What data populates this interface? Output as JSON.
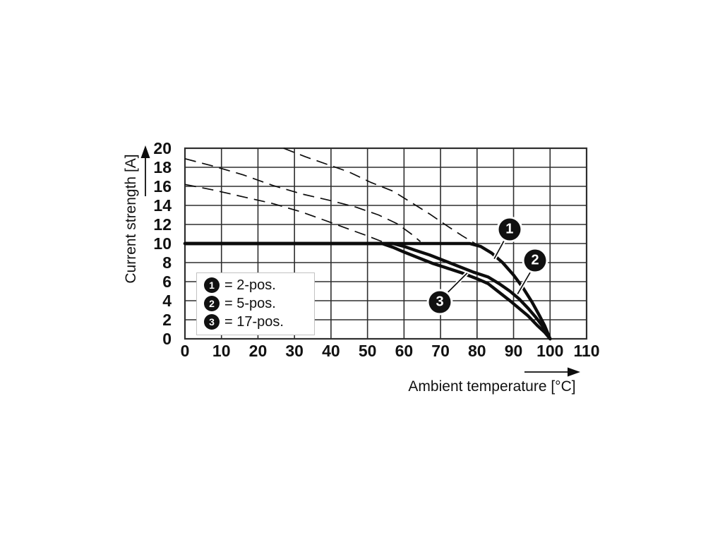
{
  "page": {
    "background": "#ffffff"
  },
  "colors": {
    "curve": "#0d0d0d",
    "grid": "#2e2e2e",
    "text": "#111111",
    "annotation_fill": "#111111",
    "annotation_text": "#ffffff",
    "legend_border": "#c2c2c2"
  },
  "chart_data": {
    "type": "line",
    "title": "",
    "xlabel": "Ambient temperature [°C]",
    "ylabel": "Current strength [A]",
    "xlim": [
      0,
      110
    ],
    "ylim": [
      0,
      20
    ],
    "grid": "on",
    "legend_position": "lower-left-inside",
    "x_ticks": [
      0,
      10,
      20,
      30,
      40,
      50,
      60,
      70,
      80,
      90,
      100,
      110
    ],
    "y_ticks": [
      0,
      2,
      4,
      6,
      8,
      10,
      12,
      14,
      16,
      18,
      20
    ],
    "rated_current_limit": 10,
    "series": [
      {
        "name": "2-pos. rated (solid)",
        "style": "solid",
        "points": [
          [
            0,
            10
          ],
          [
            78,
            10
          ],
          [
            81,
            9.7
          ],
          [
            84,
            9.0
          ],
          [
            87,
            8.0
          ],
          [
            90,
            6.7
          ],
          [
            92.5,
            5.4
          ],
          [
            95,
            3.9
          ],
          [
            97,
            2.5
          ],
          [
            98.5,
            1.4
          ],
          [
            100,
            0
          ]
        ]
      },
      {
        "name": "5-pos. rated (solid)",
        "style": "solid",
        "points": [
          [
            0,
            10
          ],
          [
            57,
            10
          ],
          [
            60,
            9.7
          ],
          [
            63,
            9.3
          ],
          [
            67,
            8.8
          ],
          [
            71,
            8.2
          ],
          [
            75,
            7.6
          ],
          [
            79,
            7.0
          ],
          [
            83,
            6.5
          ],
          [
            86,
            5.8
          ],
          [
            89,
            5.0
          ],
          [
            91.5,
            4.2
          ],
          [
            94,
            3.2
          ],
          [
            96,
            2.3
          ],
          [
            98,
            1.3
          ],
          [
            100,
            0
          ]
        ]
      },
      {
        "name": "17-pos. rated (solid)",
        "style": "solid",
        "points": [
          [
            0,
            10
          ],
          [
            54,
            10
          ],
          [
            57,
            9.6
          ],
          [
            60,
            9.1
          ],
          [
            64,
            8.5
          ],
          [
            68,
            7.9
          ],
          [
            72,
            7.4
          ],
          [
            76,
            6.9
          ],
          [
            80,
            6.3
          ],
          [
            83,
            5.8
          ],
          [
            86,
            4.9
          ],
          [
            89,
            4.0
          ],
          [
            91.5,
            3.2
          ],
          [
            94,
            2.4
          ],
          [
            96.5,
            1.4
          ],
          [
            98.5,
            0.7
          ],
          [
            100,
            0
          ]
        ]
      },
      {
        "name": "2-pos. derating (dashed)",
        "style": "dashed",
        "points": [
          [
            27,
            20
          ],
          [
            33,
            19.1
          ],
          [
            39,
            18.3
          ],
          [
            45,
            17.5
          ],
          [
            51,
            16.4
          ],
          [
            57,
            15.5
          ],
          [
            62,
            14.3
          ],
          [
            67,
            13.1
          ],
          [
            72,
            11.8
          ],
          [
            76,
            10.8
          ],
          [
            79.5,
            10.0
          ]
        ]
      },
      {
        "name": "5-pos. derating (dashed)",
        "style": "dashed",
        "points": [
          [
            0,
            18.9
          ],
          [
            8,
            18.1
          ],
          [
            16,
            17.2
          ],
          [
            24,
            16.1
          ],
          [
            32,
            15.2
          ],
          [
            40,
            14.5
          ],
          [
            47,
            13.8
          ],
          [
            53,
            13.0
          ],
          [
            58,
            12.1
          ],
          [
            62,
            11.0
          ],
          [
            64.5,
            10.2
          ]
        ]
      },
      {
        "name": "17-pos. derating (dashed)",
        "style": "dashed",
        "points": [
          [
            0,
            16.2
          ],
          [
            8,
            15.6
          ],
          [
            16,
            14.9
          ],
          [
            24,
            14.2
          ],
          [
            32,
            13.3
          ],
          [
            40,
            12.2
          ],
          [
            45,
            11.5
          ],
          [
            50,
            10.8
          ],
          [
            54,
            10.2
          ],
          [
            56,
            10.0
          ]
        ]
      }
    ],
    "annotations": [
      {
        "marker": "1",
        "cx": 88.9,
        "cy": 11.5,
        "from_x": 87.4,
        "from_y": 10.3,
        "tip_x": 84.7,
        "tip_y": 8.4
      },
      {
        "marker": "2",
        "cx": 95.9,
        "cy": 8.2,
        "from_x": 94.6,
        "from_y": 7.0,
        "tip_x": 91.1,
        "tip_y": 4.7
      },
      {
        "marker": "3",
        "cx": 69.8,
        "cy": 3.85,
        "from_x": 71.8,
        "from_y": 4.8,
        "tip_x": 77.3,
        "tip_y": 6.9
      }
    ]
  },
  "legend": {
    "items": [
      {
        "marker": "1",
        "text": "= 2-pos."
      },
      {
        "marker": "2",
        "text": "= 5-pos."
      },
      {
        "marker": "3",
        "text": "= 17-pos."
      }
    ]
  }
}
